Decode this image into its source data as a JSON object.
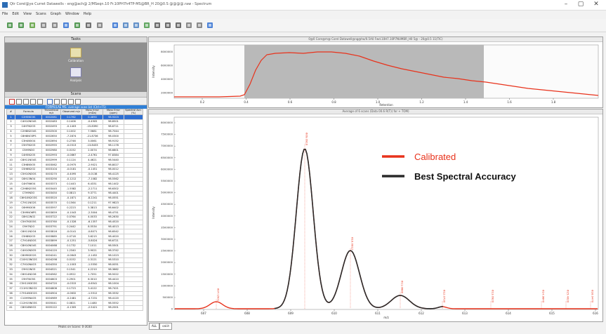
{
  "colors": {
    "calibrated": "#e8321b",
    "accuracy": "#2a2a2a",
    "label_red": "#e8321b",
    "highlight": "#2f6fd1"
  },
  "window": {
    "title": "Qtr Corel@ye Curret Datawells - eng@ach@ 2/MSeqn.10 Fr.10PH7h4TP-MS@BR_H 20@0.S @@@@.raw - Spectrum",
    "minimize": "–",
    "maximize": "▢",
    "close": "✕"
  },
  "menu": [
    "File",
    "Edit",
    "View",
    "Scans",
    "Graph",
    "Window",
    "Help"
  ],
  "toolbar_icons": [
    "open-icon",
    "save-icon",
    "add-icon",
    "print-icon",
    "copy-icon",
    "layout-icon",
    "refresh-icon",
    "export-icon",
    "settings-icon",
    "sep",
    "window-icon",
    "back-icon",
    "forward-icon",
    "chart-icon",
    "zoom-icon",
    "pan-icon",
    "crosshair-icon",
    "measure-icon",
    "grid-icon",
    "info-icon"
  ],
  "tasks": {
    "header": "Tasks",
    "items": [
      {
        "label": "Calibration"
      },
      {
        "label": "Analysis"
      }
    ]
  },
  "scans": {
    "header": "Scans",
    "table_caption": "FORMULAE MS: average scan list (Ctrl+F5)",
    "columns": [
      "#",
      "Formula",
      "Theoretical m/z",
      "Observed m/z",
      "Mass Error (mDa)",
      "Mass Error (ppm)",
      "Spectral Acc. (%)"
    ],
    "rows": [
      [
        "1",
        "C2H5NO3S",
        "0002081",
        "0.1762",
        "0.4890",
        "98.9203"
      ],
      [
        "2",
        "C4H10NO4S",
        "0002483",
        "0.1406",
        "-0.4905",
        "98.8501"
      ],
      [
        "3",
        "C4H7N2O3",
        "0002493",
        "-0.1403",
        "-15.8390",
        "98.6711"
      ],
      [
        "4",
        "C2H8N2O4S",
        "0002500",
        "0.1002",
        "7.5681",
        "98.7044"
      ],
      [
        "5",
        "C6H8NO3PS",
        "0002650",
        "-7.2874",
        "-21.8736",
        "98.0300"
      ],
      [
        "6",
        "C3H4N5O4",
        "0002694",
        "0.2746",
        "3.0061",
        "98.9152"
      ],
      [
        "7",
        "C5H7N2O3",
        "0002955",
        "-0.0313",
        "-13.8433",
        "98.1178"
      ],
      [
        "8",
        "C5H9N3O",
        "0002980",
        "0.0152",
        "2.0074",
        "98.6801"
      ],
      [
        "9",
        "C4H5N2O5",
        "0002993",
        "-0.0867",
        "-2.4761",
        "97.8384"
      ],
      [
        "10",
        "C6H11NO4S",
        "0002999",
        "0.1124",
        "4.4621",
        "98.5440"
      ],
      [
        "11",
        "C3H8N5O5",
        "0003062",
        "-0.0975",
        "-2.9021",
        "98.8027"
      ],
      [
        "12",
        "C5H6N2O2",
        "0003104",
        "-0.0181",
        "-0.1451",
        "98.0012"
      ],
      [
        "13",
        "C5H10N3OS",
        "0003270",
        "-0.4095",
        "-5.0138",
        "98.4125"
      ],
      [
        "14",
        "C6H13NO4",
        "0003290",
        "-0.1212",
        "-7.1082",
        "98.5562"
      ],
      [
        "15",
        "C4H7N6O4",
        "0003373",
        "0.1443",
        "6.4331",
        "98.1402"
      ],
      [
        "16",
        "C2H8N2O5S",
        "0003445",
        "-1.5582",
        "-2.2711",
        "98.6302"
      ],
      [
        "17",
        "C7H9N3O",
        "0003450",
        "0.0813",
        "9.3771",
        "98.4401"
      ],
      [
        "18",
        "C6H10N2O3S",
        "0003520",
        "-0.1871",
        "-8.2241",
        "98.0551"
      ],
      [
        "19",
        "C7H11NO2S",
        "0003570",
        "0.1564",
        "0.1211",
        "97.9823"
      ],
      [
        "20",
        "C6H9N3O6",
        "0003597",
        "0.2223",
        "5.3813",
        "98.6402"
      ],
      [
        "21",
        "C3H9NO6PS",
        "0003659",
        "-0.1043",
        "-2.3004",
        "98.4751"
      ],
      [
        "22",
        "C8H12NO2",
        "0003722",
        "0.0764",
        "4.0033",
        "98.2630"
      ],
      [
        "23",
        "C5H7N3O5S",
        "0003760",
        "-0.1328",
        "-6.1357",
        "98.4520"
      ],
      [
        "24",
        "C9H7N2O",
        "0003791",
        "0.2442",
        "8.5534",
        "98.4013"
      ],
      [
        "25",
        "C6H11N2O4",
        "0003816",
        "-0.0141",
        "-0.8071",
        "98.6542"
      ],
      [
        "26",
        "C5H8N2O3",
        "0003885",
        "0.0718",
        "3.6215",
        "98.4020"
      ],
      [
        "27",
        "C7H14N3OS",
        "0003899",
        "-0.1251",
        "-5.8024",
        "98.6721"
      ],
      [
        "28",
        "C8H10NO4S",
        "0004068",
        "0.1732",
        "7.1011",
        "98.5501"
      ],
      [
        "29",
        "C4H10N3O5",
        "0004120",
        "1.2340",
        "3.9021",
        "98.3742"
      ],
      [
        "30",
        "C6H9N3O2S",
        "0004241",
        "-0.0843",
        "-2.1452",
        "98.1023"
      ],
      [
        "31",
        "C10H13NO2S",
        "0004298",
        "0.0152",
        "0.3121",
        "98.5310"
      ],
      [
        "32",
        "C7H10N4O3",
        "0004350",
        "-1.1003",
        "-1.5550",
        "98.0051"
      ],
      [
        "33",
        "C9H12NO3",
        "0004521",
        "0.1541",
        "4.2210",
        "98.3662"
      ],
      [
        "34",
        "C6H14N2O6",
        "0004562",
        "0.0922",
        "1.7051",
        "98.5022"
      ],
      [
        "35",
        "C9H7NO5S",
        "0004603",
        "0.2901",
        "6.3010",
        "98.4410"
      ],
      [
        "36",
        "C5H11N3O3S",
        "0004720",
        "-0.0315",
        "-0.6541",
        "98.1004"
      ],
      [
        "37",
        "C11H13N2O2",
        "0004806",
        "0.1723",
        "3.4122",
        "98.7421"
      ],
      [
        "38",
        "C7H14N3O2S",
        "0004904",
        "-0.0632",
        "-1.5512",
        "98.3332"
      ],
      [
        "39",
        "C10H9N4O5",
        "0004989",
        "-0.2481",
        "-4.7231",
        "98.4120"
      ],
      [
        "40",
        "C12H15NO3S",
        "0005041",
        "0.0821",
        "1.1480",
        "98.5552"
      ],
      [
        "41",
        "C8H16N5O2",
        "0005122",
        "-0.1305",
        "-2.5421",
        "98.2001"
      ]
    ],
    "status": "Peaks on Scans: 0-3030"
  },
  "tabs": [
    "ALL",
    "cal.it"
  ],
  "tic": {
    "title": "0@0 Core@m@ Corel Datawell@ng@ha/0.5A0 Fwd.10H7.10P7NUMBR_H0 5@ - 20@0.5 11(TIC)",
    "ylabel": "Intensity",
    "xlabel": "Retention",
    "y_ticks": [
      "8000000",
      "6000000",
      "4000000",
      "2000000"
    ],
    "x_ticks": [
      "0.2",
      "0.4",
      "0.6",
      "0.8",
      "1.0",
      "1.2",
      "1.4",
      "1.6",
      "1.8"
    ]
  },
  "spectrum": {
    "title": "Average of 6 scans (Data 00.6 R(T)) for + TOM)",
    "ylabel": "Intensity",
    "xlabel": "m/z",
    "y_ticks": [
      "8000000",
      "7500000",
      "7000000",
      "6500000",
      "6000000",
      "5500000",
      "5000000",
      "4500000",
      "4000000",
      "3500000",
      "3000000",
      "2500000",
      "2000000",
      "1500000",
      "1000000",
      "500000",
      "0"
    ],
    "x_ticks": [
      "607",
      "608",
      "609",
      "610",
      "611",
      "612",
      "613",
      "614",
      "615",
      "616"
    ],
    "legend": [
      {
        "label": "Calibrated"
      },
      {
        "label": "Best Spectral Accuracy"
      }
    ],
    "peak_labels": [
      "607.1501",
      "609.0910",
      "610.0912",
      "611.0880",
      "612.0730",
      "613.0920",
      "614.9840",
      "615.4020",
      "616.0470"
    ]
  }
}
